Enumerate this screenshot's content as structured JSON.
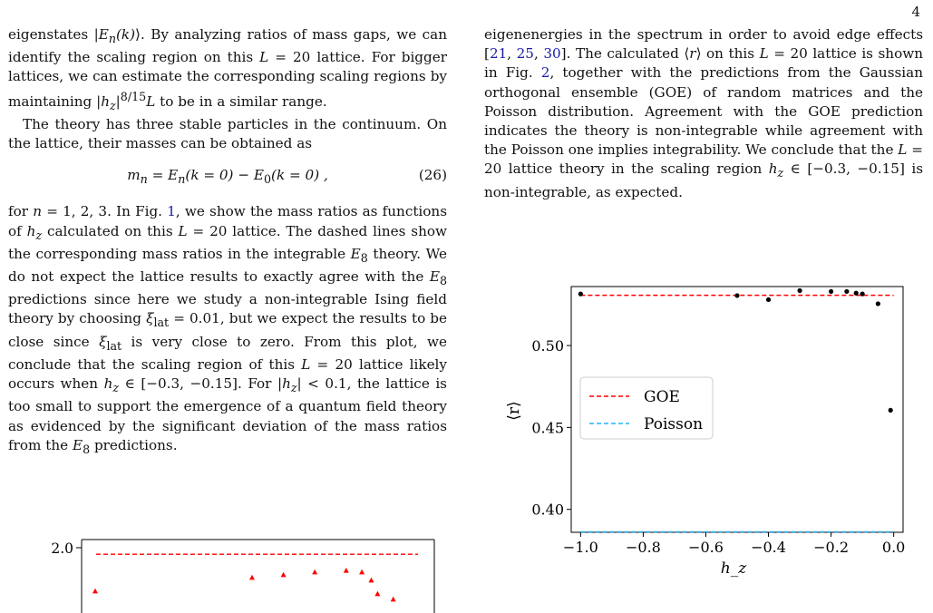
{
  "page_number": "4",
  "left_column": {
    "p1": [
      "eigenstates |",
      "E",
      "n",
      "(k)",
      "⟩. By analyzing ratios of mass gaps, we can identify the scaling region on this ",
      "L",
      " = 20 lattice. For bigger lattices, we can estimate the corresponding scaling regions by maintaining |",
      "h",
      "z",
      "|",
      "8/15",
      "L",
      " to be in a similar range."
    ],
    "p2": "The theory has three stable particles in the continuum. On the lattice, their masses can be obtained as",
    "equation": {
      "lhs": "m",
      "lhs_sub": "n",
      "body": " = E",
      "sub1": "n",
      "mid": "(k = 0) − E",
      "sub2": "0",
      "tail": "(k = 0) ,",
      "number": "(26)"
    },
    "p3": [
      "for ",
      "n",
      " = 1, 2, 3. In Fig. ",
      "1",
      ", we show the mass ratios as functions of ",
      "h",
      "z",
      " calculated on this ",
      "L",
      " = 20 lattice. The dashed lines show the corresponding mass ratios in the integrable ",
      "E",
      "8",
      " theory. We do not expect the lattice results to exactly agree with the ",
      "E",
      "8",
      " predictions since here we study a non-integrable Ising field theory by choosing ",
      "ξ",
      "lat",
      " = 0.01, but we expect the results to be close since ",
      "ξ",
      "lat",
      " is very close to zero. From this plot, we conclude that the scaling region of this ",
      "L",
      " = 20 lattice likely occurs when ",
      "h",
      "z",
      " ∈ [−0.3, −0.15]. For |",
      "h",
      "z",
      "| < 0.1, the lattice is too small to support the emergence of a quantum field theory as evidenced by the significant deviation of the mass ratios from the ",
      "E",
      "8",
      " predictions."
    ]
  },
  "right_column": {
    "p1": [
      "eigenenergies in the spectrum in order to avoid edge effects [",
      "21",
      ", ",
      "25",
      ", ",
      "30",
      "]. The calculated ⟨",
      "r",
      "⟩ on this ",
      "L",
      " = 20 lattice is shown in Fig. ",
      "2",
      ", together with the predictions from the Gaussian orthogonal ensemble (GOE) of random matrices and the Poisson distribution. Agreement with the GOE prediction indicates the theory is non-integrable while agreement with the Poisson one implies integrability. We conclude that the ",
      "L",
      " = 20 lattice theory in the scaling region ",
      "h",
      "z",
      " ∈ [−0.3, −0.15] is non-integrable, as expected."
    ]
  },
  "chart_data": [
    {
      "type": "scatter",
      "xlabel": "h_z",
      "ylabel": "⟨r⟩",
      "xlim": [
        -1.03,
        0.03
      ],
      "ylim": [
        0.386,
        0.536
      ],
      "x_ticks": [
        -1.0,
        -0.8,
        -0.6,
        -0.4,
        -0.2,
        0.0
      ],
      "x_tick_labels": [
        "−1.0",
        "−0.8",
        "−0.6",
        "−0.4",
        "−0.2",
        "0.0"
      ],
      "y_ticks": [
        0.4,
        0.45,
        0.5
      ],
      "y_tick_labels": [
        "0.40",
        "0.45",
        "0.50"
      ],
      "series": [
        {
          "x": [
            -1.0,
            -0.5,
            -0.4,
            -0.3,
            -0.2,
            -0.15,
            -0.12,
            -0.1,
            -0.05,
            -0.01
          ],
          "y": [
            0.5315,
            0.5305,
            0.528,
            0.5335,
            0.533,
            0.533,
            0.532,
            0.5315,
            0.5255,
            0.4605
          ],
          "color": "#000000"
        }
      ],
      "reference_lines": [
        {
          "name": "GOE",
          "y": 0.5307,
          "color": "#ff0000",
          "style": "dashed"
        },
        {
          "name": "Poisson",
          "y": 0.3863,
          "color": "#1fb4ff",
          "style": "dashed"
        }
      ],
      "legend": {
        "placement": "center-left",
        "entries": [
          {
            "label": "GOE",
            "color": "#ff0000"
          },
          {
            "label": "Poisson",
            "color": "#1fb4ff"
          }
        ]
      },
      "grid": false
    },
    {
      "type": "scatter",
      "ylim_visible_top": 2.0,
      "y_tick_labels": [
        "2.0"
      ],
      "series": [
        {
          "x": [
            -1.0,
            -0.5,
            -0.4,
            -0.3,
            -0.2,
            -0.15,
            -0.12,
            -0.1,
            -0.05
          ],
          "y": [
            1.92,
            1.945,
            1.95,
            1.955,
            1.958,
            1.955,
            1.94,
            1.915,
            1.905
          ],
          "color": "#ff0000",
          "marker": "triangle"
        }
      ],
      "reference_lines": [
        {
          "y": 1.988,
          "color": "#ff0000",
          "style": "dashed"
        }
      ]
    }
  ]
}
